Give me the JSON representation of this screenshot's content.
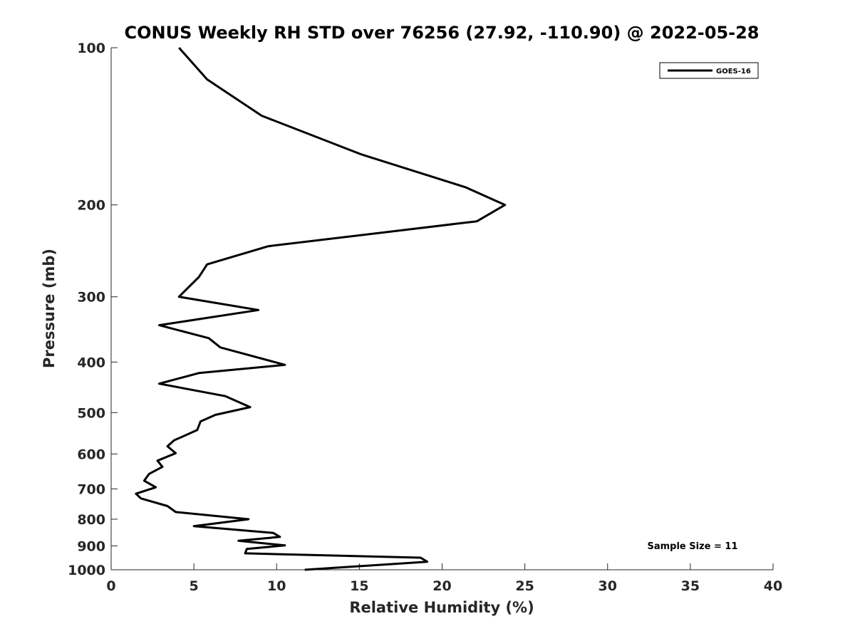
{
  "chart_data": {
    "type": "line",
    "title": "CONUS Weekly RH STD over 76256 (27.92, -110.90) @ 2022-05-28",
    "xlabel": "Relative Humidity (%)",
    "ylabel": "Pressure (mb)",
    "xlim": [
      0,
      40
    ],
    "ylim": [
      100,
      1000
    ],
    "y_scale": "log",
    "y_reversed": true,
    "x_ticks": [
      0,
      5,
      10,
      15,
      20,
      25,
      30,
      35,
      40
    ],
    "y_ticks": [
      100,
      200,
      300,
      400,
      500,
      600,
      700,
      800,
      900,
      1000
    ],
    "grid": false,
    "legend_position": "top-right",
    "series": [
      {
        "name": "GOES-16",
        "color": "#000000",
        "points": [
          [
            4.1,
            100
          ],
          [
            5.8,
            115
          ],
          [
            9.1,
            135
          ],
          [
            15.1,
            160
          ],
          [
            21.4,
            185
          ],
          [
            23.8,
            200
          ],
          [
            22.1,
            215
          ],
          [
            9.5,
            240
          ],
          [
            5.8,
            260
          ],
          [
            5.3,
            275
          ],
          [
            4.1,
            300
          ],
          [
            8.9,
            318
          ],
          [
            2.9,
            340
          ],
          [
            5.9,
            360
          ],
          [
            6.6,
            375
          ],
          [
            10.5,
            405
          ],
          [
            5.3,
            420
          ],
          [
            2.9,
            440
          ],
          [
            6.9,
            465
          ],
          [
            8.4,
            488
          ],
          [
            6.3,
            505
          ],
          [
            5.4,
            520
          ],
          [
            5.2,
            540
          ],
          [
            3.8,
            565
          ],
          [
            3.4,
            580
          ],
          [
            3.9,
            598
          ],
          [
            2.8,
            618
          ],
          [
            3.1,
            635
          ],
          [
            2.3,
            655
          ],
          [
            2.0,
            675
          ],
          [
            2.7,
            695
          ],
          [
            1.5,
            715
          ],
          [
            1.8,
            730
          ],
          [
            3.4,
            755
          ],
          [
            3.9,
            775
          ],
          [
            8.3,
            800
          ],
          [
            5.0,
            825
          ],
          [
            9.8,
            850
          ],
          [
            10.2,
            865
          ],
          [
            7.7,
            880
          ],
          [
            10.5,
            898
          ],
          [
            8.2,
            912
          ],
          [
            8.1,
            930
          ],
          [
            18.7,
            948
          ],
          [
            19.1,
            965
          ],
          [
            11.7,
            1000
          ]
        ]
      }
    ],
    "annotation": "Sample Size = 11"
  }
}
